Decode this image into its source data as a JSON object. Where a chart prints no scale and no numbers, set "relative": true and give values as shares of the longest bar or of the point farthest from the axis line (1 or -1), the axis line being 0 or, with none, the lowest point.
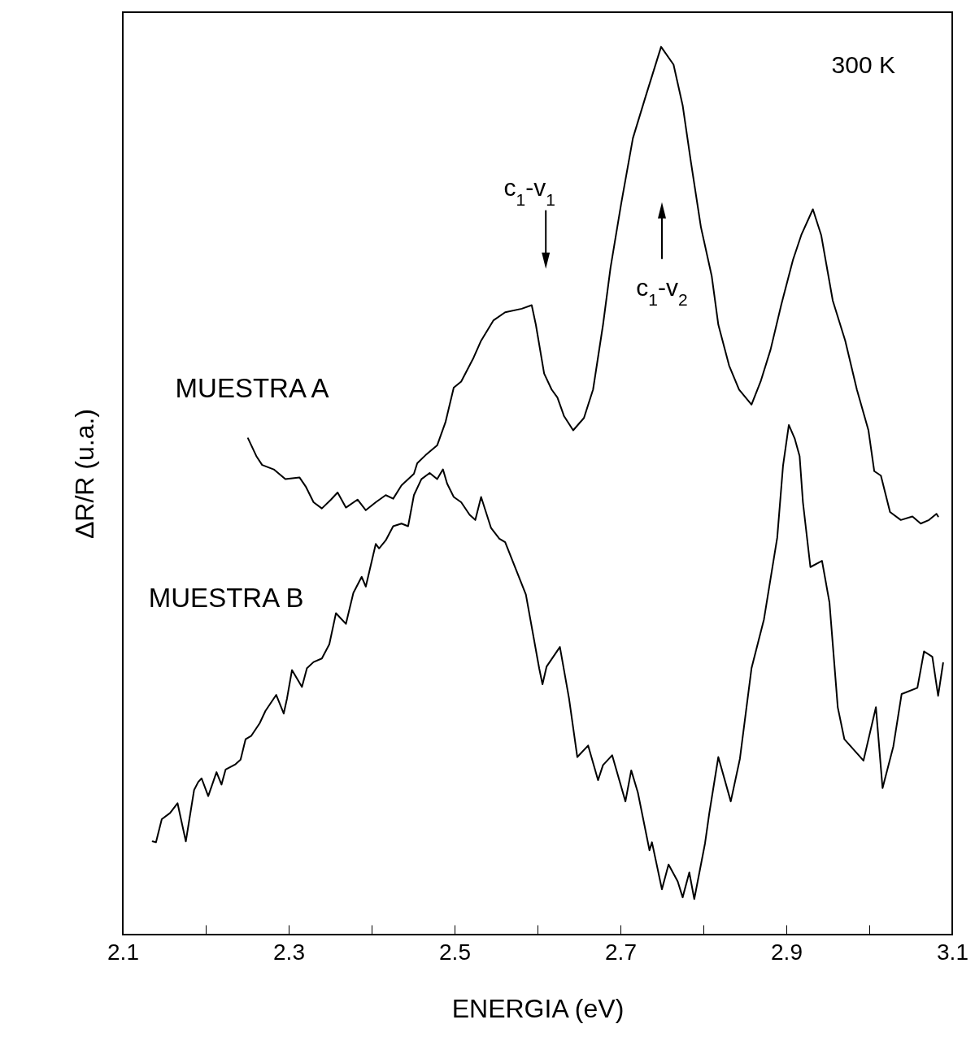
{
  "chart_data": {
    "type": "line",
    "xlabel": "ENERGIA (eV)",
    "ylabel": "ΔR/R (u.a.)",
    "relative": true,
    "xlim": [
      2.1,
      3.1
    ],
    "xticks": [
      2.1,
      {
        "value": 2.2,
        "label": null
      },
      2.3,
      {
        "value": 2.4,
        "label": null
      },
      2.5,
      {
        "value": 2.6,
        "label": null
      },
      2.7,
      {
        "value": 2.8,
        "label": null
      },
      2.9,
      {
        "value": 3.0,
        "label": null
      },
      3.1
    ],
    "grid": false,
    "marker": "none",
    "line_style": "solid",
    "annotations": [
      "c$_{1}$-v$_{1}$",
      "c$_{1}$-v$_{2}$",
      "300 K"
    ],
    "series": [
      {
        "name": "MUESTRA A",
        "color": "#000000",
        "x": [
          2.251,
          2.261,
          2.268,
          2.282,
          2.296,
          2.313,
          2.321,
          2.33,
          2.34,
          2.351,
          2.359,
          2.369,
          2.383,
          2.393,
          2.405,
          2.417,
          2.426,
          2.436,
          2.451,
          2.455,
          2.465,
          2.479,
          2.489,
          2.499,
          2.508,
          2.523,
          2.532,
          2.547,
          2.561,
          2.581,
          2.593,
          2.598,
          2.608,
          2.617,
          2.624,
          2.632,
          2.643,
          2.656,
          2.667,
          2.679,
          2.688,
          2.701,
          2.715,
          2.73,
          2.749,
          2.764,
          2.775,
          2.785,
          2.797,
          2.81,
          2.818,
          2.831,
          2.843,
          2.858,
          2.869,
          2.881,
          2.894,
          2.908,
          2.918,
          2.932,
          2.942,
          2.956,
          2.971,
          2.985,
          2.999,
          3.006,
          3.014,
          3.025,
          3.038,
          3.052,
          3.062,
          3.072,
          3.081,
          3.083
        ],
        "values": [
          0.559,
          0.539,
          0.529,
          0.524,
          0.513,
          0.515,
          0.504,
          0.487,
          0.48,
          0.49,
          0.498,
          0.481,
          0.49,
          0.478,
          0.487,
          0.495,
          0.491,
          0.506,
          0.519,
          0.531,
          0.54,
          0.551,
          0.577,
          0.616,
          0.623,
          0.65,
          0.669,
          0.692,
          0.701,
          0.705,
          0.709,
          0.687,
          0.632,
          0.614,
          0.605,
          0.584,
          0.568,
          0.582,
          0.614,
          0.687,
          0.751,
          0.824,
          0.897,
          0.943,
          1,
          0.98,
          0.934,
          0.87,
          0.797,
          0.742,
          0.687,
          0.641,
          0.614,
          0.597,
          0.623,
          0.659,
          0.71,
          0.76,
          0.788,
          0.817,
          0.788,
          0.714,
          0.669,
          0.614,
          0.568,
          0.522,
          0.517,
          0.476,
          0.467,
          0.471,
          0.463,
          0.467,
          0.474,
          0.471
        ]
      },
      {
        "name": "MUESTRA B",
        "color": "#000000",
        "x": [
          2.136,
          2.14,
          2.147,
          2.157,
          2.166,
          2.176,
          2.186,
          2.191,
          2.195,
          2.203,
          2.213,
          2.219,
          2.224,
          2.236,
          2.242,
          2.248,
          2.255,
          2.265,
          2.272,
          2.285,
          2.294,
          2.298,
          2.304,
          2.316,
          2.322,
          2.33,
          2.34,
          2.349,
          2.357,
          2.369,
          2.378,
          2.388,
          2.393,
          2.405,
          2.409,
          2.417,
          2.426,
          2.436,
          2.444,
          2.451,
          2.46,
          2.47,
          2.479,
          2.486,
          2.491,
          2.499,
          2.508,
          2.518,
          2.525,
          2.532,
          2.544,
          2.554,
          2.561,
          2.586,
          2.602,
          2.606,
          2.611,
          2.627,
          2.638,
          2.648,
          2.661,
          2.673,
          2.679,
          2.69,
          2.706,
          2.713,
          2.721,
          2.735,
          2.738,
          2.75,
          2.758,
          2.769,
          2.775,
          2.783,
          2.789,
          2.802,
          2.807,
          2.818,
          2.833,
          2.844,
          2.858,
          2.873,
          2.889,
          2.896,
          2.903,
          2.91,
          2.916,
          2.92,
          2.929,
          2.943,
          2.952,
          2.962,
          2.97,
          2.993,
          3.008,
          3.016,
          3.029,
          3.039,
          3.058,
          3.066,
          3.076,
          3.083,
          3.089
        ],
        "values": [
          0.105,
          0.104,
          0.13,
          0.137,
          0.148,
          0.105,
          0.163,
          0.172,
          0.176,
          0.156,
          0.183,
          0.169,
          0.186,
          0.192,
          0.197,
          0.22,
          0.224,
          0.238,
          0.252,
          0.27,
          0.249,
          0.266,
          0.298,
          0.279,
          0.3,
          0.307,
          0.311,
          0.327,
          0.362,
          0.35,
          0.385,
          0.403,
          0.392,
          0.44,
          0.435,
          0.444,
          0.46,
          0.463,
          0.46,
          0.495,
          0.513,
          0.52,
          0.513,
          0.524,
          0.508,
          0.493,
          0.487,
          0.473,
          0.467,
          0.493,
          0.458,
          0.446,
          0.442,
          0.383,
          0.3,
          0.282,
          0.302,
          0.324,
          0.266,
          0.2,
          0.213,
          0.174,
          0.191,
          0.202,
          0.15,
          0.185,
          0.16,
          0.095,
          0.104,
          0.051,
          0.079,
          0.06,
          0.042,
          0.07,
          0.04,
          0.103,
          0.136,
          0.2,
          0.15,
          0.198,
          0.3,
          0.355,
          0.447,
          0.528,
          0.574,
          0.559,
          0.539,
          0.487,
          0.414,
          0.421,
          0.374,
          0.256,
          0.22,
          0.196,
          0.256,
          0.165,
          0.212,
          0.271,
          0.278,
          0.319,
          0.313,
          0.269,
          0.306
        ]
      }
    ]
  }
}
